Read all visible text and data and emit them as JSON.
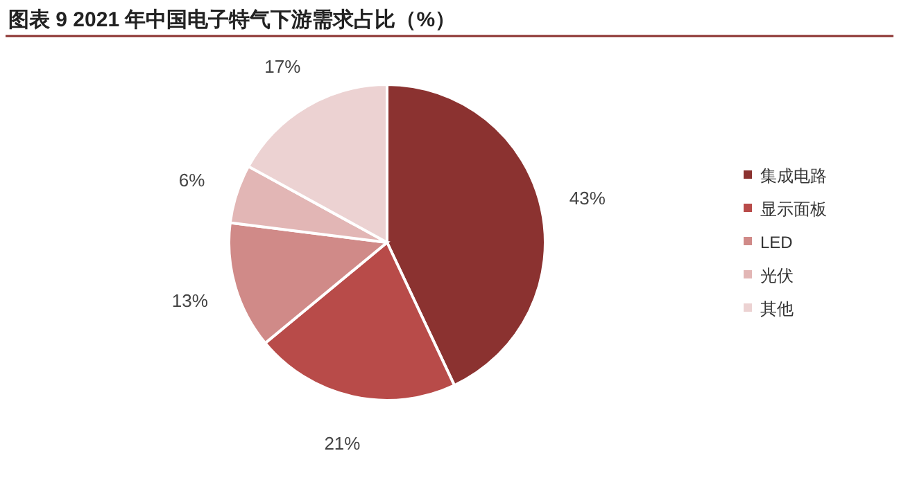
{
  "chart_data": {
    "type": "pie",
    "title": "图表 9 2021 年中国电子特气下游需求占比（%）",
    "categories": [
      "集成电路",
      "显示面板",
      "LED",
      "光伏",
      "其他"
    ],
    "values": [
      43,
      21,
      13,
      6,
      17
    ],
    "value_labels": [
      "43%",
      "21%",
      "13%",
      "6%",
      "17%"
    ],
    "colors": [
      "#8b3230",
      "#b84b49",
      "#d08a88",
      "#e2b6b5",
      "#ecd2d2"
    ],
    "legend": "right"
  }
}
